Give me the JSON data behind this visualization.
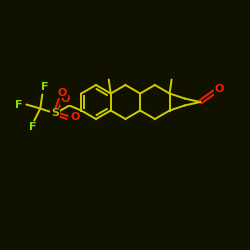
{
  "background_color": "#111100",
  "bond_color": "#cccc00",
  "atom_colors": {
    "F": "#88dd00",
    "O": "#ee2200",
    "S": "#bbaa00",
    "C": "#cccc00"
  },
  "figsize": [
    2.5,
    2.5
  ],
  "dpi": 100,
  "lw": 1.4
}
